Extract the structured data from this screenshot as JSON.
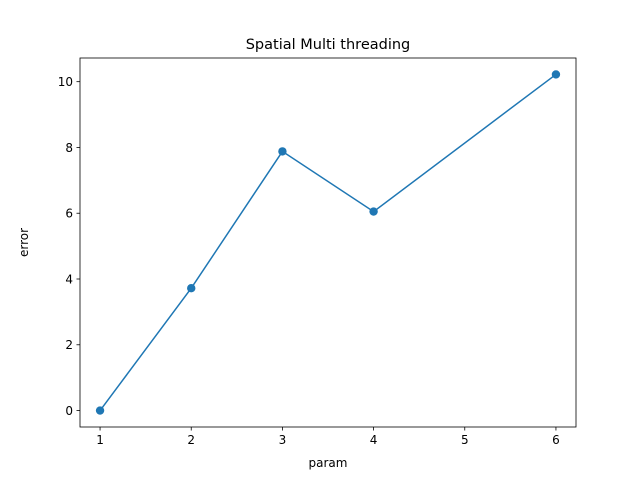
{
  "chart_data": {
    "type": "line",
    "title": "Spatial Multi threading",
    "xlabel": "param",
    "ylabel": "error",
    "x": [
      1,
      2,
      3,
      4,
      6
    ],
    "series": [
      {
        "values": [
          0.0,
          3.72,
          7.88,
          6.05,
          10.22
        ],
        "color": "#1f77b4",
        "marker": "circle"
      }
    ],
    "xlim": [
      0.78,
      6.22
    ],
    "ylim": [
      -0.5,
      10.72
    ],
    "xticks": [
      1,
      2,
      3,
      4,
      5,
      6
    ],
    "yticks": [
      0,
      2,
      4,
      6,
      8,
      10
    ],
    "grid": false,
    "legend": "none"
  }
}
